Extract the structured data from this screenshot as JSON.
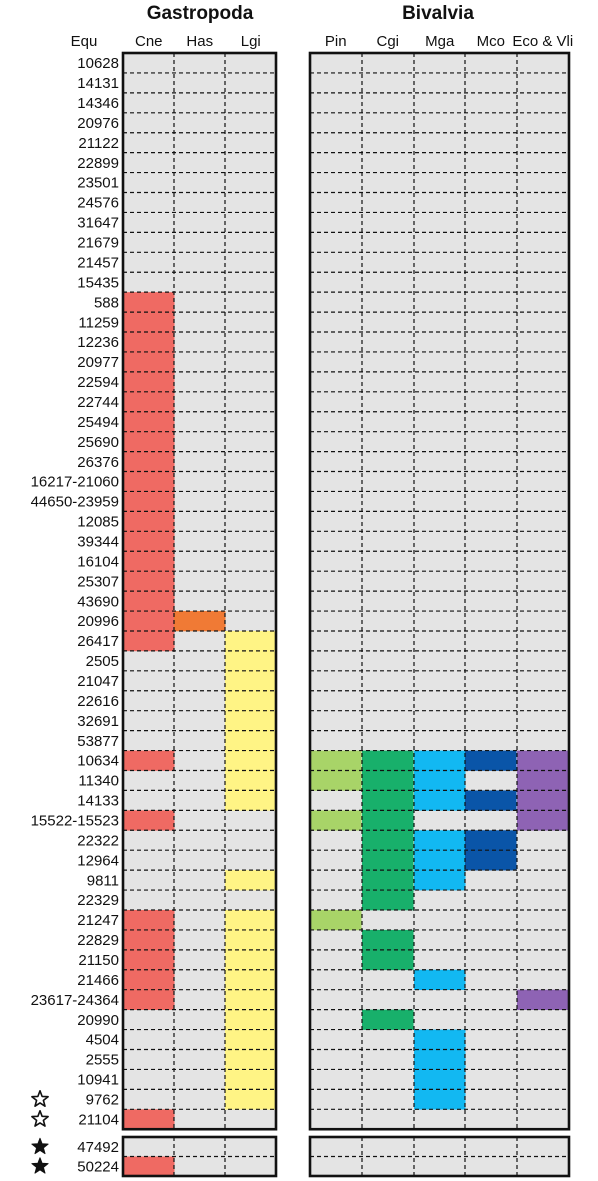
{
  "chart_data": {
    "type": "heatmap",
    "group_headers": [
      "Gastropoda",
      "Bivalvia"
    ],
    "row_header": "Equ",
    "columns": [
      "Cne",
      "Has",
      "Lgi",
      "Pin",
      "Cgi",
      "Mga",
      "Mco",
      "Eco & Vli"
    ],
    "column_groups": [
      0,
      0,
      0,
      1,
      1,
      1,
      1,
      1
    ],
    "colors": {
      "Cne": "#ef6a63",
      "Has": "#f07a35",
      "Lgi": "#fff485",
      "Pin": "#a8d468",
      "Cgi": "#18b06b",
      "Mga": "#12b8f2",
      "Mco": "#0a55a8",
      "Eco & Vli": "#8e63b4",
      "absent": "#e4e4e4"
    },
    "rows": [
      "10628",
      "14131",
      "14346",
      "20976",
      "21122",
      "22899",
      "23501",
      "24576",
      "31647",
      "21679",
      "21457",
      "15435",
      "588",
      "11259",
      "12236",
      "20977",
      "22594",
      "22744",
      "25494",
      "25690",
      "26376",
      "16217-21060",
      "44650-23959",
      "12085",
      "39344",
      "16104",
      "25307",
      "43690",
      "20996",
      "26417",
      "2505",
      "21047",
      "22616",
      "32691",
      "53877",
      "10634",
      "11340",
      "14133",
      "15522-15523",
      "22322",
      "12964",
      "9811",
      "22329",
      "21247",
      "22829",
      "21150",
      "21466",
      "23617-24364",
      "20990",
      "4504",
      "2555",
      "10941",
      "9762",
      "21104"
    ],
    "presence": [
      [
        0,
        0,
        0,
        0,
        0,
        0,
        0,
        0
      ],
      [
        0,
        0,
        0,
        0,
        0,
        0,
        0,
        0
      ],
      [
        0,
        0,
        0,
        0,
        0,
        0,
        0,
        0
      ],
      [
        0,
        0,
        0,
        0,
        0,
        0,
        0,
        0
      ],
      [
        0,
        0,
        0,
        0,
        0,
        0,
        0,
        0
      ],
      [
        0,
        0,
        0,
        0,
        0,
        0,
        0,
        0
      ],
      [
        0,
        0,
        0,
        0,
        0,
        0,
        0,
        0
      ],
      [
        0,
        0,
        0,
        0,
        0,
        0,
        0,
        0
      ],
      [
        0,
        0,
        0,
        0,
        0,
        0,
        0,
        0
      ],
      [
        0,
        0,
        0,
        0,
        0,
        0,
        0,
        0
      ],
      [
        0,
        0,
        0,
        0,
        0,
        0,
        0,
        0
      ],
      [
        0,
        0,
        0,
        0,
        0,
        0,
        0,
        0
      ],
      [
        1,
        0,
        0,
        0,
        0,
        0,
        0,
        0
      ],
      [
        1,
        0,
        0,
        0,
        0,
        0,
        0,
        0
      ],
      [
        1,
        0,
        0,
        0,
        0,
        0,
        0,
        0
      ],
      [
        1,
        0,
        0,
        0,
        0,
        0,
        0,
        0
      ],
      [
        1,
        0,
        0,
        0,
        0,
        0,
        0,
        0
      ],
      [
        1,
        0,
        0,
        0,
        0,
        0,
        0,
        0
      ],
      [
        1,
        0,
        0,
        0,
        0,
        0,
        0,
        0
      ],
      [
        1,
        0,
        0,
        0,
        0,
        0,
        0,
        0
      ],
      [
        1,
        0,
        0,
        0,
        0,
        0,
        0,
        0
      ],
      [
        1,
        0,
        0,
        0,
        0,
        0,
        0,
        0
      ],
      [
        1,
        0,
        0,
        0,
        0,
        0,
        0,
        0
      ],
      [
        1,
        0,
        0,
        0,
        0,
        0,
        0,
        0
      ],
      [
        1,
        0,
        0,
        0,
        0,
        0,
        0,
        0
      ],
      [
        1,
        0,
        0,
        0,
        0,
        0,
        0,
        0
      ],
      [
        1,
        0,
        0,
        0,
        0,
        0,
        0,
        0
      ],
      [
        1,
        0,
        0,
        0,
        0,
        0,
        0,
        0
      ],
      [
        1,
        1,
        0,
        0,
        0,
        0,
        0,
        0
      ],
      [
        1,
        0,
        1,
        0,
        0,
        0,
        0,
        0
      ],
      [
        0,
        0,
        1,
        0,
        0,
        0,
        0,
        0
      ],
      [
        0,
        0,
        1,
        0,
        0,
        0,
        0,
        0
      ],
      [
        0,
        0,
        1,
        0,
        0,
        0,
        0,
        0
      ],
      [
        0,
        0,
        1,
        0,
        0,
        0,
        0,
        0
      ],
      [
        0,
        0,
        1,
        0,
        0,
        0,
        0,
        0
      ],
      [
        1,
        0,
        1,
        1,
        1,
        1,
        1,
        1
      ],
      [
        0,
        0,
        1,
        1,
        1,
        1,
        0,
        1
      ],
      [
        0,
        0,
        1,
        0,
        1,
        1,
        1,
        1
      ],
      [
        1,
        0,
        0,
        1,
        1,
        0,
        0,
        1
      ],
      [
        0,
        0,
        0,
        0,
        1,
        1,
        1,
        0
      ],
      [
        0,
        0,
        0,
        0,
        1,
        1,
        1,
        0
      ],
      [
        0,
        0,
        1,
        0,
        1,
        1,
        0,
        0
      ],
      [
        0,
        0,
        0,
        0,
        1,
        0,
        0,
        0
      ],
      [
        1,
        0,
        1,
        1,
        0,
        0,
        0,
        0
      ],
      [
        1,
        0,
        1,
        0,
        1,
        0,
        0,
        0
      ],
      [
        1,
        0,
        1,
        0,
        1,
        0,
        0,
        0
      ],
      [
        1,
        0,
        1,
        0,
        0,
        1,
        0,
        0
      ],
      [
        1,
        0,
        1,
        0,
        0,
        0,
        0,
        1
      ],
      [
        0,
        0,
        1,
        0,
        1,
        0,
        0,
        0
      ],
      [
        0,
        0,
        1,
        0,
        0,
        1,
        0,
        0
      ],
      [
        0,
        0,
        1,
        0,
        0,
        1,
        0,
        0
      ],
      [
        0,
        0,
        1,
        0,
        0,
        1,
        0,
        0
      ],
      [
        0,
        0,
        1,
        0,
        0,
        1,
        0,
        0
      ],
      [
        1,
        0,
        0,
        0,
        0,
        0,
        0,
        0
      ]
    ],
    "outline_star_rows": [
      "9762",
      "21104"
    ],
    "extra_rows": [
      "47492",
      "50224"
    ],
    "extra_presence": [
      [
        0,
        0,
        0,
        0,
        0,
        0,
        0,
        0
      ],
      [
        1,
        0,
        0,
        0,
        0,
        0,
        0,
        0
      ]
    ],
    "filled_star_rows": [
      "47492",
      "50224"
    ]
  }
}
